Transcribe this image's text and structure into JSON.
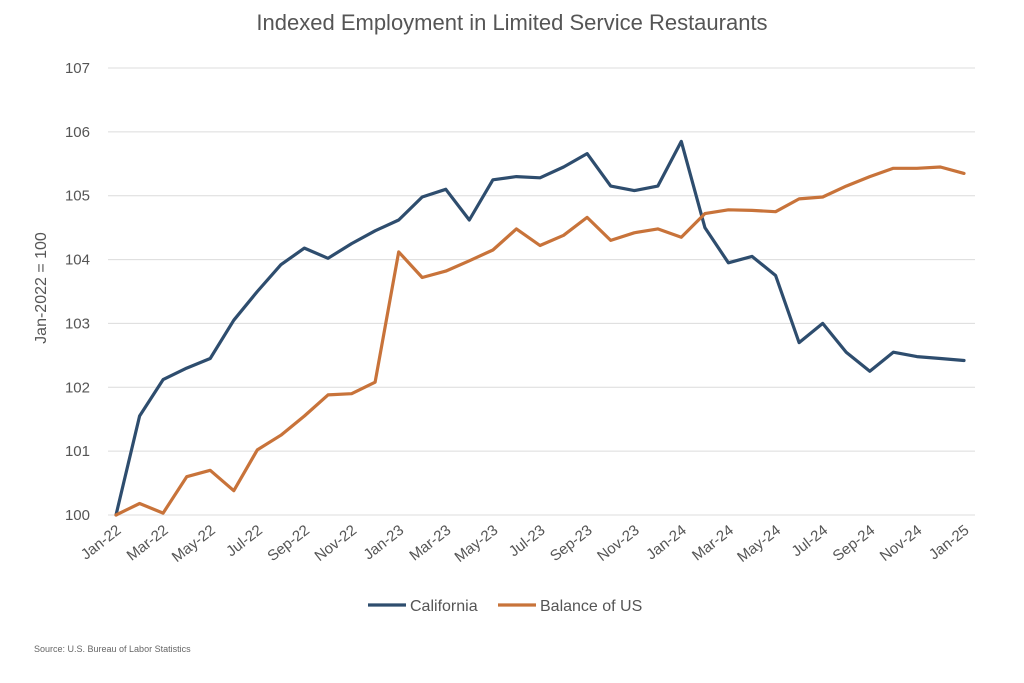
{
  "chart_data": {
    "type": "line",
    "title": "Indexed Employment in Limited Service Restaurants",
    "ylabel": "Jan-2022 = 100",
    "xlabel": "",
    "ylim": [
      100,
      107
    ],
    "yticks": [
      100,
      101,
      102,
      103,
      104,
      105,
      106,
      107
    ],
    "grid": "horizontal",
    "legend_position": "bottom",
    "x": [
      "Jan-22",
      "Feb-22",
      "Mar-22",
      "Apr-22",
      "May-22",
      "Jun-22",
      "Jul-22",
      "Aug-22",
      "Sep-22",
      "Oct-22",
      "Nov-22",
      "Dec-22",
      "Jan-23",
      "Feb-23",
      "Mar-23",
      "Apr-23",
      "May-23",
      "Jun-23",
      "Jul-23",
      "Aug-23",
      "Sep-23",
      "Oct-23",
      "Nov-23",
      "Dec-23",
      "Jan-24",
      "Feb-24",
      "Mar-24",
      "Apr-24",
      "May-24",
      "Jun-24",
      "Jul-24",
      "Aug-24",
      "Sep-24",
      "Oct-24",
      "Nov-24",
      "Dec-24",
      "Jan-25"
    ],
    "xtick_labels": [
      "Jan-22",
      "Mar-22",
      "May-22",
      "Jul-22",
      "Sep-22",
      "Nov-22",
      "Jan-23",
      "Mar-23",
      "May-23",
      "Jul-23",
      "Sep-23",
      "Nov-23",
      "Jan-24",
      "Mar-24",
      "May-24",
      "Jul-24",
      "Sep-24",
      "Nov-24",
      "Jan-25"
    ],
    "series": [
      {
        "name": "California",
        "color": "#2e4d6e",
        "values": [
          100.0,
          101.55,
          102.12,
          102.3,
          102.45,
          103.05,
          103.5,
          103.92,
          104.18,
          104.02,
          104.25,
          104.45,
          104.62,
          104.98,
          105.1,
          104.62,
          105.25,
          105.3,
          105.28,
          105.45,
          105.66,
          105.15,
          105.08,
          105.15,
          105.85,
          104.5,
          103.95,
          104.05,
          103.75,
          102.7,
          103.0,
          102.55,
          102.25,
          102.55,
          102.48,
          102.45,
          102.42
        ]
      },
      {
        "name": "Balance of US",
        "color": "#c8733a",
        "values": [
          100.0,
          100.18,
          100.03,
          100.6,
          100.7,
          100.38,
          101.02,
          101.25,
          101.55,
          101.88,
          101.9,
          102.08,
          104.12,
          103.72,
          103.82,
          103.98,
          104.15,
          104.48,
          104.22,
          104.38,
          104.66,
          104.3,
          104.42,
          104.48,
          104.35,
          104.72,
          104.78,
          104.77,
          104.75,
          104.95,
          104.98,
          105.15,
          105.3,
          105.43,
          105.43,
          105.45,
          105.35
        ]
      }
    ]
  },
  "source": "Source: U.S. Bureau of Labor Statistics"
}
